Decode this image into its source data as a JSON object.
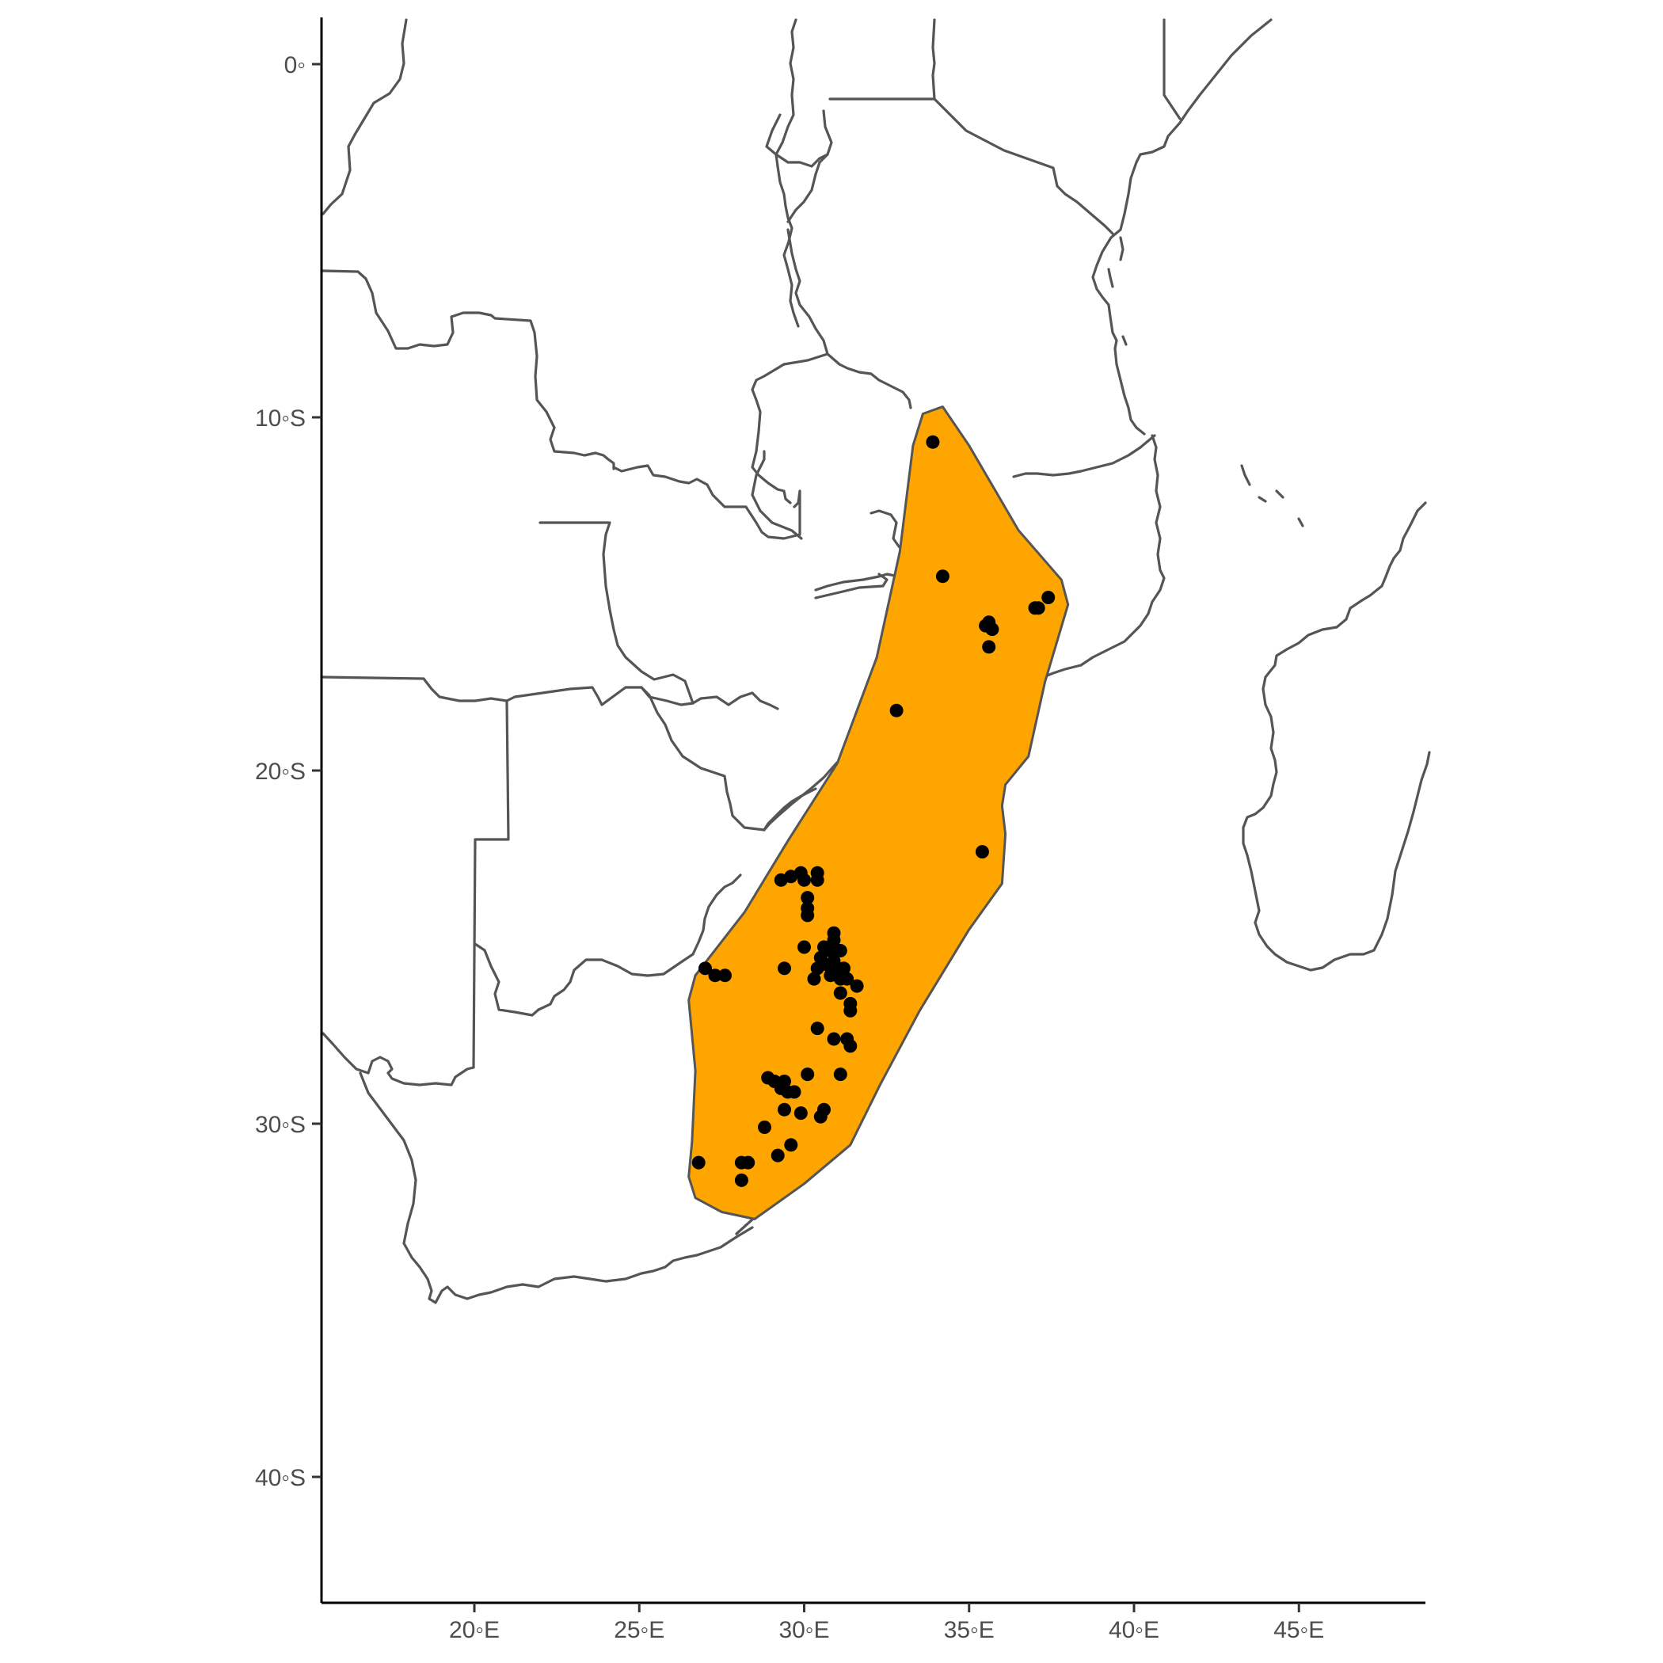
{
  "chart_data": {
    "type": "scatter",
    "title": "",
    "xlabel": "",
    "ylabel": "",
    "xlim": [
      15.4,
      48.9
    ],
    "ylim": [
      -43.5,
      1.3
    ],
    "x_ticks": [
      {
        "value": 20,
        "label": "20◦E"
      },
      {
        "value": 25,
        "label": "25◦E"
      },
      {
        "value": 30,
        "label": "30◦E"
      },
      {
        "value": 35,
        "label": "35◦E"
      },
      {
        "value": 40,
        "label": "40◦E"
      },
      {
        "value": 45,
        "label": "45◦E"
      }
    ],
    "y_ticks": [
      {
        "value": 0,
        "label": "0◦"
      },
      {
        "value": -10,
        "label": "10◦S"
      },
      {
        "value": -20,
        "label": "20◦S"
      },
      {
        "value": -30,
        "label": "30◦S"
      },
      {
        "value": -40,
        "label": "40◦S"
      }
    ],
    "grid": false,
    "colors": {
      "range_fill": "#FFA500",
      "range_outline": "#555555",
      "border": "#555555",
      "points": "#000000",
      "axis": "#000000",
      "tick_text": "#4d4d4d",
      "background": "#ffffff"
    },
    "range_polygon": [
      [
        34.2,
        -9.7
      ],
      [
        35.0,
        -10.8
      ],
      [
        36.5,
        -13.2
      ],
      [
        37.8,
        -14.6
      ],
      [
        38.0,
        -15.3
      ],
      [
        37.3,
        -17.5
      ],
      [
        36.8,
        -19.6
      ],
      [
        36.1,
        -20.4
      ],
      [
        36.0,
        -21.0
      ],
      [
        36.1,
        -21.8
      ],
      [
        36.0,
        -23.2
      ],
      [
        35.0,
        -24.5
      ],
      [
        33.5,
        -26.8
      ],
      [
        32.3,
        -28.9
      ],
      [
        31.4,
        -30.6
      ],
      [
        30.0,
        -31.7
      ],
      [
        28.5,
        -32.7
      ],
      [
        27.5,
        -32.5
      ],
      [
        26.7,
        -32.1
      ],
      [
        26.5,
        -31.5
      ],
      [
        26.6,
        -30.5
      ],
      [
        26.7,
        -28.5
      ],
      [
        26.5,
        -26.5
      ],
      [
        26.7,
        -25.8
      ],
      [
        28.2,
        -24.0
      ],
      [
        29.5,
        -22.0
      ],
      [
        31.0,
        -19.8
      ],
      [
        32.2,
        -16.8
      ],
      [
        32.9,
        -13.8
      ],
      [
        33.3,
        -10.8
      ],
      [
        33.6,
        -9.9
      ]
    ],
    "points": [
      {
        "x": 33.9,
        "y": -10.7
      },
      {
        "x": 34.2,
        "y": -14.5
      },
      {
        "x": 37.4,
        "y": -15.1
      },
      {
        "x": 37.0,
        "y": -15.4
      },
      {
        "x": 37.1,
        "y": -15.4
      },
      {
        "x": 35.5,
        "y": -15.9
      },
      {
        "x": 35.6,
        "y": -15.8
      },
      {
        "x": 35.7,
        "y": -16.0
      },
      {
        "x": 35.6,
        "y": -16.5
      },
      {
        "x": 32.8,
        "y": -18.3
      },
      {
        "x": 35.4,
        "y": -22.3
      },
      {
        "x": 29.3,
        "y": -23.1
      },
      {
        "x": 29.6,
        "y": -23.0
      },
      {
        "x": 29.9,
        "y": -22.9
      },
      {
        "x": 30.0,
        "y": -23.1
      },
      {
        "x": 30.4,
        "y": -22.9
      },
      {
        "x": 30.4,
        "y": -23.1
      },
      {
        "x": 30.1,
        "y": -23.6
      },
      {
        "x": 30.1,
        "y": -23.9
      },
      {
        "x": 30.1,
        "y": -24.1
      },
      {
        "x": 30.9,
        "y": -24.6
      },
      {
        "x": 30.9,
        "y": -24.8
      },
      {
        "x": 30.6,
        "y": -25.0
      },
      {
        "x": 30.0,
        "y": -25.0
      },
      {
        "x": 30.8,
        "y": -25.1
      },
      {
        "x": 31.1,
        "y": -25.1
      },
      {
        "x": 30.5,
        "y": -25.3
      },
      {
        "x": 30.7,
        "y": -25.5
      },
      {
        "x": 30.9,
        "y": -25.4
      },
      {
        "x": 31.0,
        "y": -25.7
      },
      {
        "x": 31.2,
        "y": -25.6
      },
      {
        "x": 30.4,
        "y": -25.6
      },
      {
        "x": 30.8,
        "y": -25.8
      },
      {
        "x": 31.1,
        "y": -25.9
      },
      {
        "x": 31.3,
        "y": -25.9
      },
      {
        "x": 30.3,
        "y": -25.9
      },
      {
        "x": 29.4,
        "y": -25.6
      },
      {
        "x": 31.6,
        "y": -26.1
      },
      {
        "x": 31.1,
        "y": -26.3
      },
      {
        "x": 31.4,
        "y": -26.6
      },
      {
        "x": 31.4,
        "y": -26.8
      },
      {
        "x": 27.0,
        "y": -25.6
      },
      {
        "x": 27.3,
        "y": -25.8
      },
      {
        "x": 27.6,
        "y": -25.8
      },
      {
        "x": 30.4,
        "y": -27.3
      },
      {
        "x": 30.9,
        "y": -27.6
      },
      {
        "x": 31.3,
        "y": -27.6
      },
      {
        "x": 31.4,
        "y": -27.8
      },
      {
        "x": 30.1,
        "y": -28.6
      },
      {
        "x": 31.1,
        "y": -28.6
      },
      {
        "x": 28.9,
        "y": -28.7
      },
      {
        "x": 29.1,
        "y": -28.8
      },
      {
        "x": 29.4,
        "y": -28.8
      },
      {
        "x": 29.3,
        "y": -29.0
      },
      {
        "x": 29.5,
        "y": -29.1
      },
      {
        "x": 29.7,
        "y": -29.1
      },
      {
        "x": 29.4,
        "y": -29.6
      },
      {
        "x": 29.9,
        "y": -29.7
      },
      {
        "x": 30.6,
        "y": -29.6
      },
      {
        "x": 30.5,
        "y": -29.8
      },
      {
        "x": 28.8,
        "y": -30.1
      },
      {
        "x": 29.6,
        "y": -30.6
      },
      {
        "x": 29.2,
        "y": -30.9
      },
      {
        "x": 26.8,
        "y": -31.1
      },
      {
        "x": 28.1,
        "y": -31.1
      },
      {
        "x": 28.3,
        "y": -31.1
      },
      {
        "x": 28.1,
        "y": -31.6
      }
    ]
  }
}
